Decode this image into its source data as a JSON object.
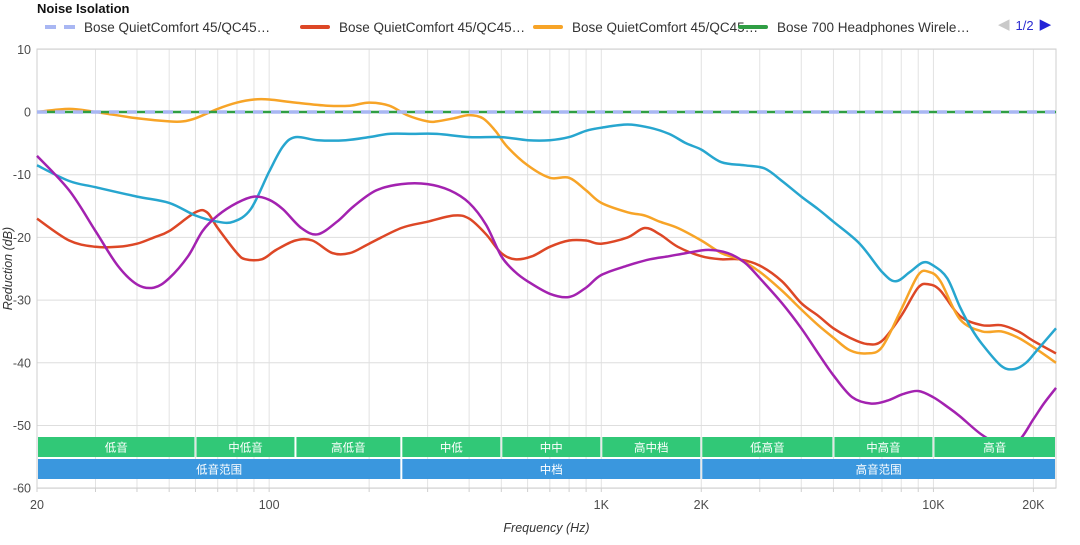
{
  "title": "Noise Isolation",
  "legend": {
    "items": [
      {
        "label": "Bose QuietComfort 45/QC45…",
        "color": "#a9b7f3",
        "dashed": true
      },
      {
        "label": "Bose QuietComfort 45/QC45…",
        "color": "#dd4726",
        "dashed": false
      },
      {
        "label": "Bose QuietComfort 45/QC45…",
        "color": "#f7a427",
        "dashed": false
      },
      {
        "label": "Bose 700 Headphones Wirele…",
        "color": "#2f9e44",
        "dashed": false
      }
    ],
    "pagination": {
      "page_label": "1/2",
      "prev_icon": "◀",
      "next_icon": "▶"
    }
  },
  "axes": {
    "x": {
      "title": "Frequency (Hz)",
      "scale": "log",
      "min": 20,
      "max": 23390,
      "ticks": [
        {
          "value": 20,
          "label": "20"
        },
        {
          "value": 100,
          "label": "100"
        },
        {
          "value": 1000,
          "label": "1K"
        },
        {
          "value": 2000,
          "label": "2K"
        },
        {
          "value": 10000,
          "label": "10K"
        },
        {
          "value": 20000,
          "label": "20K"
        }
      ],
      "gridlines": [
        20,
        30,
        40,
        50,
        60,
        70,
        80,
        90,
        100,
        200,
        300,
        400,
        500,
        600,
        700,
        800,
        900,
        1000,
        2000,
        3000,
        4000,
        5000,
        6000,
        7000,
        8000,
        9000,
        10000,
        20000
      ]
    },
    "y": {
      "title": "Reduction (dB)",
      "min": -60,
      "max": 10,
      "ticks": [
        10,
        0,
        -10,
        -20,
        -30,
        -40,
        -50,
        -60
      ]
    }
  },
  "bands": {
    "rows": [
      {
        "color": "#31c877",
        "text_color": "#ffffff",
        "cells": [
          {
            "label": "低音",
            "from": 20,
            "to": 60
          },
          {
            "label": "中低音",
            "from": 60,
            "to": 120
          },
          {
            "label": "高低音",
            "from": 120,
            "to": 250
          },
          {
            "label": "中低",
            "from": 250,
            "to": 500
          },
          {
            "label": "中中",
            "from": 500,
            "to": 1000
          },
          {
            "label": "高中档",
            "from": 1000,
            "to": 2000
          },
          {
            "label": "低高音",
            "from": 2000,
            "to": 5000
          },
          {
            "label": "中高音",
            "from": 5000,
            "to": 10000
          },
          {
            "label": "高音",
            "from": 10000,
            "to": 23390
          }
        ]
      },
      {
        "color": "#3a97de",
        "text_color": "#ffffff",
        "cells": [
          {
            "label": "低音范围",
            "from": 20,
            "to": 250
          },
          {
            "label": "中档",
            "from": 250,
            "to": 2000
          },
          {
            "label": "高音范围",
            "from": 2000,
            "to": 23390
          }
        ]
      }
    ]
  },
  "chart_data": {
    "type": "line",
    "x_scale": "log",
    "title": "Noise Isolation",
    "xlabel": "Frequency (Hz)",
    "ylabel": "Reduction (dB)",
    "xlim": [
      20,
      23390
    ],
    "ylim": [
      -60,
      10
    ],
    "grid": true,
    "legend_position": "top",
    "series": [
      {
        "name": "Bose QuietComfort 45/QC45…",
        "id": "qc45-red",
        "color": "#dd4726",
        "dashed": false,
        "width": 2.5,
        "points": [
          [
            20,
            -17
          ],
          [
            25,
            -20.5
          ],
          [
            30,
            -21.5
          ],
          [
            35,
            -21.5
          ],
          [
            40,
            -21
          ],
          [
            45,
            -20
          ],
          [
            50,
            -19
          ],
          [
            60,
            -16
          ],
          [
            65,
            -16
          ],
          [
            70,
            -18.5
          ],
          [
            80,
            -22.5
          ],
          [
            85,
            -23.5
          ],
          [
            95,
            -23.5
          ],
          [
            105,
            -22
          ],
          [
            120,
            -20.5
          ],
          [
            135,
            -20.5
          ],
          [
            155,
            -22.5
          ],
          [
            175,
            -22.5
          ],
          [
            200,
            -21
          ],
          [
            250,
            -18.5
          ],
          [
            300,
            -17.5
          ],
          [
            360,
            -16.5
          ],
          [
            400,
            -17
          ],
          [
            450,
            -19.5
          ],
          [
            500,
            -22.5
          ],
          [
            550,
            -23.5
          ],
          [
            620,
            -23
          ],
          [
            700,
            -21.5
          ],
          [
            800,
            -20.5
          ],
          [
            900,
            -20.5
          ],
          [
            1000,
            -21
          ],
          [
            1200,
            -20
          ],
          [
            1350,
            -18.5
          ],
          [
            1500,
            -19.5
          ],
          [
            1700,
            -21.5
          ],
          [
            2000,
            -23
          ],
          [
            2300,
            -23.5
          ],
          [
            2600,
            -23.5
          ],
          [
            3000,
            -24.5
          ],
          [
            3500,
            -27
          ],
          [
            4000,
            -30.5
          ],
          [
            4500,
            -32.5
          ],
          [
            5000,
            -34.5
          ],
          [
            5600,
            -36
          ],
          [
            6300,
            -37
          ],
          [
            7000,
            -36.5
          ],
          [
            8000,
            -32.5
          ],
          [
            9000,
            -28
          ],
          [
            9700,
            -27.5
          ],
          [
            10500,
            -28.5
          ],
          [
            12000,
            -32.5
          ],
          [
            14000,
            -34
          ],
          [
            16000,
            -34
          ],
          [
            18000,
            -35
          ],
          [
            20000,
            -36.5
          ],
          [
            23390,
            -38.5
          ]
        ]
      },
      {
        "name": "Bose QuietComfort 45/QC45…",
        "id": "qc45-orange",
        "color": "#f7a427",
        "dashed": false,
        "width": 2.5,
        "points": [
          [
            20,
            0
          ],
          [
            25,
            0.5
          ],
          [
            30,
            0
          ],
          [
            40,
            -1
          ],
          [
            50,
            -1.5
          ],
          [
            55,
            -1.5
          ],
          [
            60,
            -1
          ],
          [
            70,
            0.5
          ],
          [
            80,
            1.5
          ],
          [
            90,
            2
          ],
          [
            100,
            2
          ],
          [
            120,
            1.5
          ],
          [
            150,
            1
          ],
          [
            175,
            1
          ],
          [
            200,
            1.5
          ],
          [
            230,
            1
          ],
          [
            260,
            -0.5
          ],
          [
            300,
            -1.5
          ],
          [
            320,
            -1.5
          ],
          [
            360,
            -1
          ],
          [
            400,
            -0.5
          ],
          [
            440,
            -1
          ],
          [
            480,
            -3
          ],
          [
            520,
            -5.5
          ],
          [
            600,
            -8.5
          ],
          [
            700,
            -10.5
          ],
          [
            800,
            -10.5
          ],
          [
            900,
            -12.5
          ],
          [
            1000,
            -14.5
          ],
          [
            1200,
            -16
          ],
          [
            1350,
            -16.5
          ],
          [
            1500,
            -17.5
          ],
          [
            1700,
            -18.5
          ],
          [
            2000,
            -20.5
          ],
          [
            2300,
            -22.5
          ],
          [
            2600,
            -23.5
          ],
          [
            3000,
            -25.5
          ],
          [
            3500,
            -28.5
          ],
          [
            4000,
            -31.5
          ],
          [
            4500,
            -34
          ],
          [
            5000,
            -36
          ],
          [
            5600,
            -38
          ],
          [
            6300,
            -38.5
          ],
          [
            7000,
            -37.5
          ],
          [
            8000,
            -31.5
          ],
          [
            9000,
            -26
          ],
          [
            9700,
            -25.5
          ],
          [
            10500,
            -27
          ],
          [
            12000,
            -33
          ],
          [
            14000,
            -35
          ],
          [
            16000,
            -35
          ],
          [
            18000,
            -36
          ],
          [
            20000,
            -37.5
          ],
          [
            23390,
            -40
          ]
        ]
      },
      {
        "name": "",
        "id": "teal-page2-series",
        "color": "#27a6cf",
        "dashed": false,
        "width": 2.5,
        "points": [
          [
            20,
            -8.5
          ],
          [
            25,
            -11
          ],
          [
            30,
            -12
          ],
          [
            40,
            -13.5
          ],
          [
            50,
            -14.5
          ],
          [
            60,
            -16.5
          ],
          [
            70,
            -17.5
          ],
          [
            78,
            -17.5
          ],
          [
            88,
            -15.5
          ],
          [
            100,
            -9.5
          ],
          [
            110,
            -5.5
          ],
          [
            120,
            -4
          ],
          [
            140,
            -4.5
          ],
          [
            170,
            -4.5
          ],
          [
            200,
            -4
          ],
          [
            230,
            -3.5
          ],
          [
            270,
            -3.5
          ],
          [
            320,
            -3.5
          ],
          [
            400,
            -4
          ],
          [
            500,
            -4
          ],
          [
            600,
            -4.5
          ],
          [
            700,
            -4.5
          ],
          [
            800,
            -4
          ],
          [
            900,
            -3
          ],
          [
            1000,
            -2.5
          ],
          [
            1200,
            -2
          ],
          [
            1400,
            -2.5
          ],
          [
            1600,
            -3.5
          ],
          [
            1800,
            -5
          ],
          [
            2000,
            -6
          ],
          [
            2300,
            -8
          ],
          [
            2700,
            -8.5
          ],
          [
            3100,
            -9
          ],
          [
            3500,
            -11
          ],
          [
            4000,
            -13.5
          ],
          [
            4500,
            -15.5
          ],
          [
            5000,
            -17.5
          ],
          [
            6000,
            -21
          ],
          [
            7000,
            -25.5
          ],
          [
            7700,
            -27
          ],
          [
            8500,
            -25.5
          ],
          [
            9300,
            -24
          ],
          [
            10000,
            -24.5
          ],
          [
            11000,
            -26.5
          ],
          [
            12000,
            -31
          ],
          [
            13000,
            -34.5
          ],
          [
            14000,
            -37
          ],
          [
            16000,
            -40.5
          ],
          [
            17500,
            -41
          ],
          [
            19000,
            -40
          ],
          [
            20500,
            -38
          ],
          [
            23390,
            -34.5
          ]
        ]
      },
      {
        "name": "",
        "id": "purple-page2-series",
        "color": "#a322b0",
        "dashed": false,
        "width": 2.5,
        "points": [
          [
            20,
            -7
          ],
          [
            25,
            -12.5
          ],
          [
            30,
            -19
          ],
          [
            35,
            -24.5
          ],
          [
            40,
            -27.5
          ],
          [
            45,
            -28
          ],
          [
            50,
            -26.5
          ],
          [
            57,
            -23
          ],
          [
            63,
            -19
          ],
          [
            70,
            -16.5
          ],
          [
            80,
            -14.5
          ],
          [
            90,
            -13.5
          ],
          [
            100,
            -14
          ],
          [
            110,
            -15.5
          ],
          [
            125,
            -18.5
          ],
          [
            140,
            -19.5
          ],
          [
            160,
            -17.5
          ],
          [
            180,
            -15
          ],
          [
            210,
            -12.5
          ],
          [
            250,
            -11.5
          ],
          [
            300,
            -11.5
          ],
          [
            350,
            -12.5
          ],
          [
            400,
            -14.5
          ],
          [
            450,
            -18
          ],
          [
            500,
            -23
          ],
          [
            550,
            -25.5
          ],
          [
            600,
            -27
          ],
          [
            700,
            -29
          ],
          [
            800,
            -29.5
          ],
          [
            900,
            -28
          ],
          [
            1000,
            -26
          ],
          [
            1200,
            -24.5
          ],
          [
            1400,
            -23.5
          ],
          [
            1600,
            -23
          ],
          [
            1800,
            -22.5
          ],
          [
            2100,
            -22
          ],
          [
            2400,
            -22.5
          ],
          [
            2700,
            -24
          ],
          [
            3000,
            -26.5
          ],
          [
            3500,
            -30.5
          ],
          [
            4000,
            -34.5
          ],
          [
            4500,
            -38.5
          ],
          [
            5000,
            -42
          ],
          [
            5700,
            -45.5
          ],
          [
            6500,
            -46.5
          ],
          [
            7300,
            -46
          ],
          [
            8100,
            -45
          ],
          [
            9000,
            -44.5
          ],
          [
            10000,
            -45.5
          ],
          [
            11000,
            -47
          ],
          [
            12000,
            -48.5
          ],
          [
            14000,
            -51.5
          ],
          [
            16000,
            -53
          ],
          [
            18000,
            -52.5
          ],
          [
            20000,
            -49
          ],
          [
            21500,
            -46.5
          ],
          [
            23390,
            -44
          ]
        ]
      },
      {
        "name": "Bose 700 Headphones Wirele…",
        "id": "bose700-green",
        "color": "#2f9e44",
        "dashed": false,
        "width": 2.5,
        "points": [
          [
            20,
            0
          ],
          [
            23390,
            0
          ]
        ]
      },
      {
        "name": "Bose QuietComfort 45/QC45…",
        "id": "qc45-dashed-baseline",
        "color": "#a9b7f3",
        "dashed": true,
        "width": 3.5,
        "points": [
          [
            20,
            0
          ],
          [
            23390,
            0
          ]
        ]
      }
    ]
  }
}
